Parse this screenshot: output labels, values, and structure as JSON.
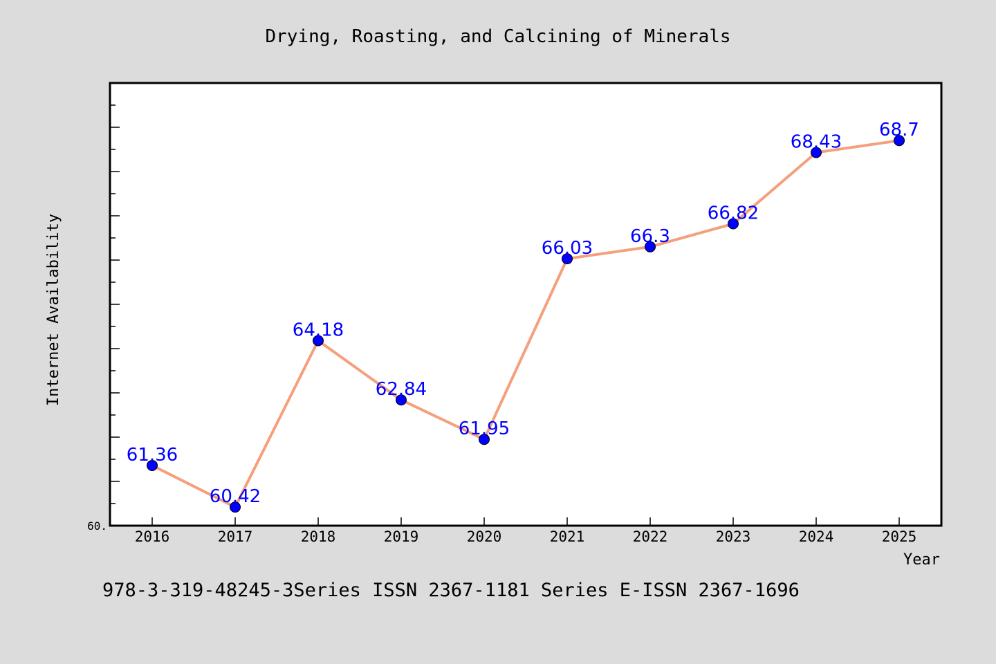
{
  "chart_data": {
    "type": "line",
    "title": "Drying, Roasting, and Calcining of Minerals",
    "xlabel": "Year",
    "ylabel": "Internet Availability",
    "x": [
      "2016",
      "2017",
      "2018",
      "2019",
      "2020",
      "2021",
      "2022",
      "2023",
      "2024",
      "2025"
    ],
    "series": [
      {
        "values": [
          61.36,
          60.42,
          64.18,
          62.84,
          61.95,
          66.03,
          66.3,
          66.82,
          68.43,
          68.7
        ],
        "data_labels": [
          "61.36",
          "60.42",
          "64.18",
          "62.84",
          "61.95",
          "66.03",
          "66.3",
          "66.82",
          "68.43",
          "68.7"
        ],
        "line_color": "#f4a07c",
        "marker_color": "#0000ff"
      }
    ],
    "ylim": [
      60.0,
      70.0
    ],
    "y_min_label": "60.",
    "grid": false,
    "legend": "none"
  },
  "footer": {
    "text": "978-3-319-48245-3Series ISSN 2367-1181 Series E-ISSN 2367-1696"
  },
  "colors": {
    "background": "#dcdcdc",
    "plot_background": "#ffffff",
    "data_label": "#0000ff"
  }
}
